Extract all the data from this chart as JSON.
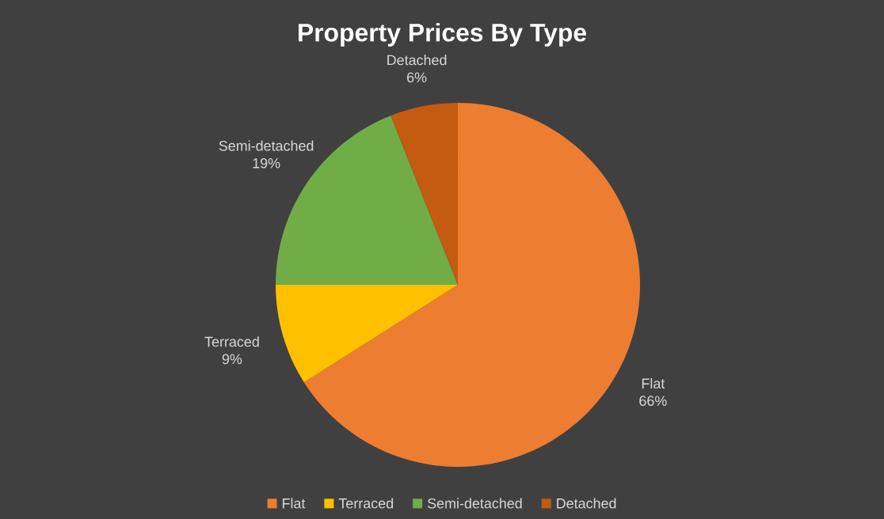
{
  "chart_data": {
    "type": "pie",
    "title": "Property Prices By Type",
    "categories": [
      "Flat",
      "Terraced",
      "Semi-detached",
      "Detached"
    ],
    "values": [
      66,
      9,
      19,
      6
    ],
    "value_labels": [
      "66%",
      "9%",
      "19%",
      "6%"
    ],
    "colors": [
      "#ed7d31",
      "#ffc000",
      "#70ad47",
      "#c55a11"
    ],
    "legend": "bottom"
  }
}
